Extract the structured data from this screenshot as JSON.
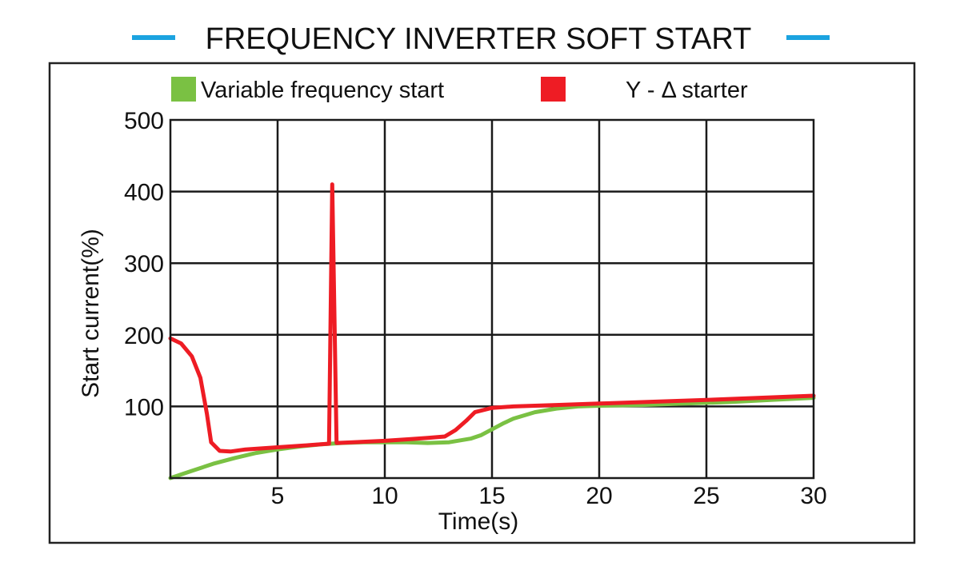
{
  "chart_data": {
    "type": "line",
    "title": "FREQUENCY INVERTER SOFT START",
    "title_accent_color": "#1ba3e0",
    "xlabel": "Time(s)",
    "ylabel": "Start current(%)",
    "xlim": [
      0,
      30
    ],
    "ylim": [
      0,
      500
    ],
    "x_ticks": [
      {
        "value": 5,
        "label": "5"
      },
      {
        "value": 10,
        "label": "10"
      },
      {
        "value": 15,
        "label": "15"
      },
      {
        "value": 20,
        "label": "20"
      },
      {
        "value": 25,
        "label": "25"
      },
      {
        "value": 30,
        "label": "30"
      }
    ],
    "y_ticks": [
      {
        "value": 100,
        "label": "100"
      },
      {
        "value": 200,
        "label": "200"
      },
      {
        "value": 300,
        "label": "300"
      },
      {
        "value": 400,
        "label": "400"
      },
      {
        "value": 500,
        "label": "500"
      }
    ],
    "grid": true,
    "legend_position": "top",
    "series": [
      {
        "name": "Variable frequency start",
        "color": "#7ac143",
        "points": [
          [
            0,
            0
          ],
          [
            1,
            10
          ],
          [
            2,
            20
          ],
          [
            3,
            28
          ],
          [
            4,
            35
          ],
          [
            5,
            40
          ],
          [
            6,
            44
          ],
          [
            7,
            47
          ],
          [
            8,
            49
          ],
          [
            9,
            50
          ],
          [
            10,
            50
          ],
          [
            11,
            50
          ],
          [
            12,
            49
          ],
          [
            13,
            50
          ],
          [
            14,
            55
          ],
          [
            14.5,
            60
          ],
          [
            15,
            68
          ],
          [
            15.5,
            76
          ],
          [
            16,
            83
          ],
          [
            17,
            92
          ],
          [
            18,
            97
          ],
          [
            19,
            100
          ],
          [
            20,
            101
          ],
          [
            22,
            102
          ],
          [
            24,
            104
          ],
          [
            26,
            106
          ],
          [
            28,
            109
          ],
          [
            30,
            112
          ]
        ]
      },
      {
        "name": "Y - Δ starter",
        "color": "#ee1c24",
        "points": [
          [
            0,
            195
          ],
          [
            0.5,
            188
          ],
          [
            1,
            170
          ],
          [
            1.4,
            140
          ],
          [
            1.7,
            90
          ],
          [
            1.9,
            50
          ],
          [
            2.3,
            38
          ],
          [
            2.8,
            37
          ],
          [
            3.5,
            40
          ],
          [
            5,
            43
          ],
          [
            6.5,
            46
          ],
          [
            7.4,
            48
          ],
          [
            7.55,
            410
          ],
          [
            7.75,
            49
          ],
          [
            8.5,
            50
          ],
          [
            10,
            52
          ],
          [
            11,
            54
          ],
          [
            12,
            56
          ],
          [
            12.8,
            58
          ],
          [
            13.3,
            67
          ],
          [
            13.8,
            80
          ],
          [
            14.2,
            92
          ],
          [
            15,
            98
          ],
          [
            16,
            100
          ],
          [
            18,
            102
          ],
          [
            20,
            104
          ],
          [
            25,
            109
          ],
          [
            30,
            115
          ]
        ]
      }
    ]
  }
}
